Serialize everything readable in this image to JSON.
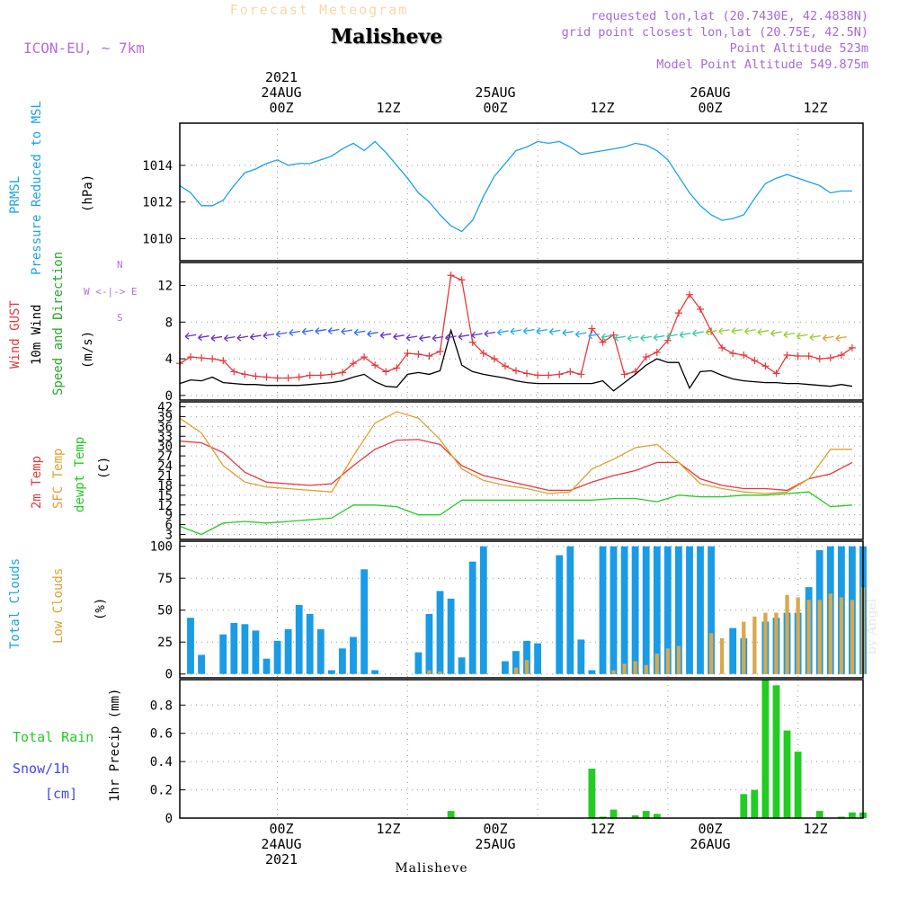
{
  "header": {
    "title": "Forecast Meteogram",
    "location": "Malisheve",
    "model": "ICON-EU, ~ 7km",
    "requested": "requested lon,lat (20.7430E, 42.4838N)",
    "grid_point": "grid point closest lon,lat (20.75E, 42.5N)",
    "point_altitude": "Point Altitude 523m",
    "model_altitude": "Model Point Altitude 549.875m"
  },
  "time_axis": {
    "top_labels": [
      {
        "line1": "2021",
        "line2": "24AUG",
        "line3": "00Z"
      },
      {
        "line1": "",
        "line2": "",
        "line3": "12Z"
      },
      {
        "line1": "",
        "line2": "25AUG",
        "line3": "00Z"
      },
      {
        "line1": "",
        "line2": "",
        "line3": "12Z"
      },
      {
        "line1": "",
        "line2": "26AUG",
        "line3": "00Z"
      },
      {
        "line1": "",
        "line2": "",
        "line3": "12Z"
      }
    ],
    "bottom_labels": [
      {
        "line1": "00Z",
        "line2": "24AUG",
        "line3": "2021"
      },
      {
        "line1": "12Z",
        "line2": "",
        "line3": ""
      },
      {
        "line1": "00Z",
        "line2": "25AUG",
        "line3": ""
      },
      {
        "line1": "12Z",
        "line2": "",
        "line3": ""
      },
      {
        "line1": "00Z",
        "line2": "26AUG",
        "line3": ""
      },
      {
        "line1": "12Z",
        "line2": "",
        "line3": ""
      }
    ]
  },
  "panel_labels": {
    "pressure": {
      "a": "PRMSL",
      "b": "Pressure Reduced to MSL",
      "unit": "(hPa)"
    },
    "wind": {
      "a": "Wind GUST",
      "b": "10m Wind",
      "c": "Speed and Direction",
      "unit": "(m/s)",
      "compass_n": "N",
      "compass_s": "S",
      "compass_ew": "W <-|-> E"
    },
    "temp": {
      "a": "2m Temp",
      "b": "SFC Temp",
      "c": "dewpt Temp",
      "unit": "(C)"
    },
    "clouds": {
      "a": "Total Clouds",
      "b": "Low Clouds",
      "unit": "(%)"
    },
    "precip": {
      "a": "Total  Rain",
      "b": "Snow/1h",
      "c": "[cm]",
      "unit": "1hr Precip (mm)"
    }
  },
  "watermark": "by Angel",
  "footer": {
    "location": "Malisheve"
  },
  "colors": {
    "pressure": "#1aa3e6",
    "gust": "#e8383c",
    "wind": "#000000",
    "t2m": "#e8383c",
    "sfc": "#e0a030",
    "dewpt": "#22cc22",
    "total_cloud": "#1a9be6",
    "low_cloud": "#d9a84a",
    "rain": "#22cc22",
    "snow": "#4444ee",
    "title_faint": "#f5d9a8",
    "info": "#a46ad8"
  },
  "chart_data": [
    {
      "id": "pressure",
      "type": "line",
      "title": "PRMSL Pressure Reduced to MSL",
      "ylabel": "(hPa)",
      "x_range": [
        -9,
        54
      ],
      "ylim": [
        1008.8,
        1016.3
      ],
      "yticks": [
        1010,
        1012,
        1014
      ],
      "grid": true,
      "series": [
        {
          "name": "PRMSL",
          "x": [
            -9,
            -8,
            -7,
            -6,
            -5,
            -4,
            -3,
            -2,
            -1,
            0,
            1,
            2,
            3,
            4,
            5,
            6,
            7,
            8,
            9,
            10,
            11,
            12,
            13,
            14,
            15,
            16,
            17,
            18,
            19,
            20,
            21,
            22,
            23,
            24,
            25,
            26,
            27,
            28,
            29,
            30,
            31,
            32,
            33,
            34,
            35,
            36,
            37,
            38,
            39,
            40,
            41,
            42,
            43,
            44,
            45,
            46,
            47,
            48,
            49,
            50,
            51,
            52,
            53
          ],
          "y": [
            1012.9,
            1012.5,
            1011.8,
            1011.8,
            1012.1,
            1012.9,
            1013.6,
            1013.8,
            1014.1,
            1014.3,
            1014.0,
            1014.1,
            1014.1,
            1014.3,
            1014.5,
            1014.9,
            1015.2,
            1014.8,
            1015.3,
            1014.7,
            1014.0,
            1013.3,
            1012.5,
            1012.0,
            1011.3,
            1010.7,
            1010.4,
            1011.0,
            1012.3,
            1013.4,
            1014.1,
            1014.8,
            1015.0,
            1015.3,
            1015.2,
            1015.3,
            1015.0,
            1014.6,
            1014.7,
            1014.8,
            1014.9,
            1015.0,
            1015.2,
            1015.1,
            1014.8,
            1014.3,
            1013.4,
            1012.5,
            1011.8,
            1011.3,
            1011.0,
            1011.1,
            1011.3,
            1012.2,
            1013.0,
            1013.3,
            1013.5,
            1013.3,
            1013.1,
            1012.9,
            1012.5,
            1012.6,
            1012.6
          ]
        }
      ]
    },
    {
      "id": "wind",
      "type": "line",
      "title": "Wind GUST / 10m Wind",
      "ylabel": "(m/s)",
      "x_range": [
        -9,
        54
      ],
      "ylim": [
        -0.5,
        14.5
      ],
      "yticks": [
        0,
        4,
        8,
        12
      ],
      "grid": true,
      "series": [
        {
          "name": "Wind GUST",
          "x": [
            -9,
            -8,
            -7,
            -6,
            -5,
            -4,
            -3,
            -2,
            -1,
            0,
            1,
            2,
            3,
            4,
            5,
            6,
            7,
            8,
            9,
            10,
            11,
            12,
            13,
            14,
            15,
            16,
            17,
            18,
            19,
            20,
            21,
            22,
            23,
            24,
            25,
            26,
            27,
            28,
            29,
            30,
            31,
            32,
            33,
            34,
            35,
            36,
            37,
            38,
            39,
            40,
            41,
            42,
            43,
            44,
            45,
            46,
            47,
            48,
            49,
            50,
            51,
            52,
            53
          ],
          "y": [
            3.5,
            4.2,
            4.1,
            4.0,
            3.8,
            2.6,
            2.3,
            2.1,
            2.0,
            1.9,
            1.9,
            2.0,
            2.2,
            2.2,
            2.3,
            2.5,
            3.5,
            4.2,
            3.3,
            2.6,
            3.0,
            4.6,
            4.5,
            4.3,
            4.8,
            13.1,
            12.6,
            5.8,
            4.6,
            4.0,
            3.2,
            2.7,
            2.4,
            2.2,
            2.2,
            2.3,
            2.6,
            2.3,
            7.3,
            5.8,
            6.6,
            2.3,
            2.6,
            4.2,
            4.7,
            6.0,
            9.0,
            11.0,
            9.4,
            7.0,
            5.2,
            4.6,
            4.4,
            3.8,
            3.2,
            2.4,
            4.4,
            4.3,
            4.3,
            4.0,
            4.1,
            4.4,
            5.2
          ]
        },
        {
          "name": "10m Wind",
          "x": [
            -9,
            -8,
            -7,
            -6,
            -5,
            -4,
            -3,
            -2,
            -1,
            0,
            1,
            2,
            3,
            4,
            5,
            6,
            7,
            8,
            9,
            10,
            11,
            12,
            13,
            14,
            15,
            16,
            17,
            18,
            19,
            20,
            21,
            22,
            23,
            24,
            25,
            26,
            27,
            28,
            29,
            30,
            31,
            32,
            33,
            34,
            35,
            36,
            37,
            38,
            39,
            40,
            41,
            42,
            43,
            44,
            45,
            46,
            47,
            48,
            49,
            50,
            51,
            52,
            53
          ],
          "y": [
            1.3,
            1.7,
            1.6,
            2.0,
            1.4,
            1.3,
            1.2,
            1.2,
            1.1,
            1.1,
            1.1,
            1.1,
            1.2,
            1.3,
            1.4,
            1.6,
            2.0,
            2.3,
            1.5,
            1.0,
            0.9,
            2.3,
            2.5,
            2.3,
            2.7,
            7.1,
            3.3,
            2.6,
            2.3,
            2.1,
            1.9,
            1.6,
            1.4,
            1.3,
            1.3,
            1.3,
            1.3,
            1.3,
            1.3,
            1.6,
            0.5,
            1.4,
            2.3,
            3.3,
            4.0,
            3.6,
            3.6,
            0.8,
            2.6,
            2.7,
            2.2,
            1.8,
            1.6,
            1.5,
            1.4,
            1.4,
            1.3,
            1.3,
            1.2,
            1.1,
            1.0,
            1.2,
            1.0
          ]
        }
      ]
    },
    {
      "id": "temp",
      "type": "line",
      "title": "2m Temp / SFC Temp / dewpt Temp",
      "ylabel": "(C)",
      "x_range": [
        -9,
        54
      ],
      "ylim": [
        1.5,
        43.5
      ],
      "yticks": [
        3,
        6,
        9,
        12,
        15,
        18,
        21,
        24,
        27,
        30,
        33,
        36,
        39,
        42
      ],
      "grid": true,
      "series": [
        {
          "name": "2m Temp",
          "x": [
            -9,
            -7,
            -5,
            -3,
            -1,
            1,
            3,
            5,
            7,
            9,
            11,
            13,
            15,
            17,
            19,
            21,
            23,
            25,
            27,
            29,
            31,
            33,
            35,
            37,
            39,
            41,
            43,
            45,
            47,
            49,
            51,
            53
          ],
          "y": [
            31.5,
            31.0,
            28.0,
            22.0,
            19.0,
            18.5,
            18.0,
            18.5,
            24.0,
            29.0,
            31.8,
            32.0,
            30.5,
            24.0,
            21.0,
            19.5,
            18.0,
            16.5,
            16.5,
            19.0,
            21.0,
            22.5,
            25.0,
            25.0,
            20.0,
            18.0,
            17.0,
            17.0,
            16.5,
            20.0,
            21.5,
            25.0
          ]
        },
        {
          "name": "SFC Temp",
          "x": [
            -9,
            -7,
            -5,
            -3,
            -1,
            1,
            3,
            5,
            7,
            9,
            11,
            13,
            15,
            17,
            19,
            21,
            23,
            25,
            27,
            29,
            31,
            33,
            35,
            37,
            39,
            41,
            43,
            45,
            47,
            49,
            51,
            53
          ],
          "y": [
            38.5,
            34.0,
            24.0,
            19.0,
            17.5,
            17.0,
            16.5,
            16.0,
            27.0,
            37.0,
            40.5,
            38.5,
            32.0,
            23.0,
            19.5,
            18.0,
            17.0,
            15.5,
            16.0,
            23.0,
            26.0,
            29.5,
            30.5,
            25.0,
            18.5,
            17.0,
            16.0,
            15.5,
            16.0,
            20.0,
            29.0,
            29.0
          ]
        },
        {
          "name": "dewpt Temp",
          "x": [
            -9,
            -7,
            -5,
            -3,
            -1,
            1,
            3,
            5,
            7,
            9,
            11,
            13,
            15,
            17,
            19,
            21,
            23,
            25,
            27,
            29,
            31,
            33,
            35,
            37,
            39,
            41,
            43,
            45,
            47,
            49,
            51,
            53
          ],
          "y": [
            5.5,
            3.0,
            6.5,
            7.0,
            6.5,
            7.0,
            7.5,
            8.0,
            12.0,
            12.0,
            11.5,
            9.0,
            9.0,
            13.5,
            13.5,
            13.5,
            13.5,
            13.5,
            13.5,
            13.5,
            14.0,
            14.0,
            13.0,
            15.0,
            14.5,
            14.5,
            15.0,
            15.0,
            15.5,
            16.0,
            11.5,
            12.0
          ]
        }
      ]
    },
    {
      "id": "clouds",
      "type": "bar",
      "title": "Total Clouds / Low Clouds",
      "ylabel": "(%)",
      "x_range": [
        -9,
        54
      ],
      "ylim": [
        -3,
        104
      ],
      "yticks": [
        0,
        25,
        50,
        75,
        100
      ],
      "grid": true,
      "x": [
        -8,
        -7,
        -6,
        -5,
        -4,
        -3,
        -2,
        -1,
        0,
        1,
        2,
        3,
        4,
        5,
        6,
        7,
        8,
        9,
        10,
        11,
        12,
        13,
        14,
        15,
        16,
        17,
        18,
        19,
        20,
        21,
        22,
        23,
        24,
        25,
        26,
        27,
        28,
        29,
        30,
        31,
        32,
        33,
        34,
        35,
        36,
        37,
        38,
        39,
        40,
        41,
        42,
        43,
        44,
        45,
        46,
        47,
        48,
        49,
        50,
        51,
        52,
        53,
        54
      ],
      "series": [
        {
          "name": "Total Clouds",
          "values": [
            44,
            15,
            0,
            31,
            40,
            39,
            34,
            12,
            26,
            35,
            54,
            47,
            35,
            3,
            20,
            29,
            82,
            3,
            0,
            0,
            0,
            17,
            47,
            65,
            59,
            13,
            88,
            100,
            0,
            10,
            18,
            26,
            24,
            0,
            93,
            100,
            27,
            3,
            100,
            100,
            100,
            100,
            100,
            100,
            100,
            100,
            100,
            100,
            100,
            0,
            36,
            28,
            0,
            41,
            44,
            48,
            48,
            68,
            97,
            100,
            100,
            100,
            100
          ]
        },
        {
          "name": "Low Clouds",
          "values": [
            0,
            0,
            0,
            0,
            0,
            0,
            0,
            0,
            0,
            0,
            0,
            0,
            0,
            0,
            0,
            0,
            0,
            0,
            0,
            0,
            0,
            0,
            3,
            2,
            0,
            0,
            0,
            0,
            0,
            0,
            5,
            11,
            0,
            0,
            0,
            0,
            0,
            0,
            0,
            3,
            8,
            10,
            7,
            16,
            20,
            22,
            0,
            0,
            32,
            28,
            0,
            41,
            45,
            48,
            48,
            62,
            60,
            58,
            58,
            63,
            60,
            58,
            68
          ]
        }
      ]
    },
    {
      "id": "precip",
      "type": "bar",
      "title": "1hr Precip (mm)",
      "ylabel": "1hr Precip (mm)",
      "x_range": [
        -9,
        54
      ],
      "ylim": [
        0,
        0.98
      ],
      "yticks": [
        0,
        0.2,
        0.4,
        0.6,
        0.8
      ],
      "grid": true,
      "x": [
        16,
        29,
        30,
        31,
        33,
        34,
        35,
        36,
        37,
        38,
        39,
        40,
        41,
        42,
        43,
        44,
        45,
        46,
        47,
        48,
        49,
        50,
        51,
        52,
        53,
        54
      ],
      "series": [
        {
          "name": "Total Rain",
          "values": [
            0.05,
            0.35,
            0.01,
            0.06,
            0.02,
            0.05,
            0.03,
            0.0,
            0.0,
            0.0,
            0.0,
            0.0,
            0.0,
            0.0,
            0.17,
            0.2,
            0.98,
            0.94,
            0.62,
            0.47,
            0.0,
            0.05,
            0.0,
            0.01,
            0.04,
            0.04
          ]
        }
      ]
    }
  ]
}
